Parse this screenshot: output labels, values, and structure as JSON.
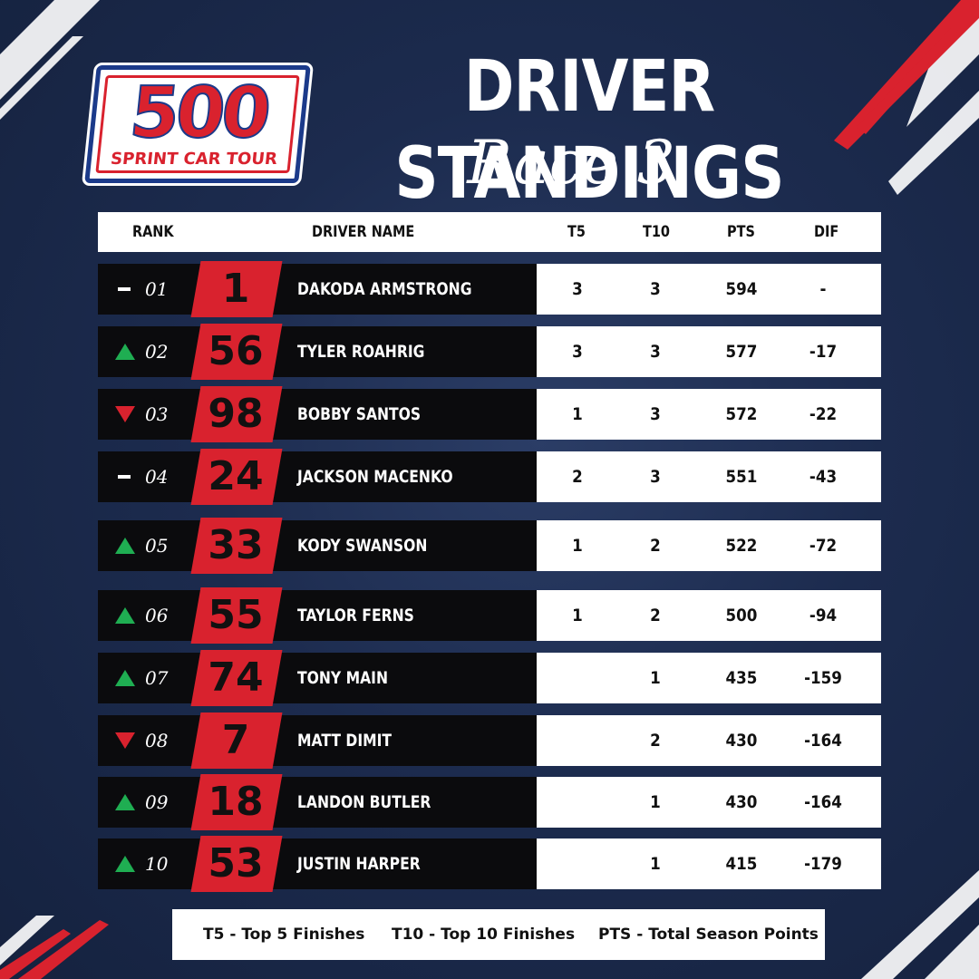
{
  "logo": {
    "number": "500",
    "tagline": "SPRINT CAR TOUR"
  },
  "title": "DRIVER STANDINGS",
  "subtitle": "Race 3",
  "columns": {
    "rank": "RANK",
    "driver": "DRIVER NAME",
    "t5": "T5",
    "t10": "T10",
    "pts": "PTS",
    "dif": "DIF"
  },
  "colors": {
    "accent": "#d9222e",
    "up": "#1fae52",
    "down": "#d9222e",
    "background": "#1c2b4e"
  },
  "standings": [
    {
      "trend": "same",
      "rank": "01",
      "car": "1",
      "driver": "DAKODA ARMSTRONG",
      "t5": "3",
      "t10": "3",
      "pts": "594",
      "dif": "-"
    },
    {
      "trend": "up",
      "rank": "02",
      "car": "56",
      "driver": "TYLER ROAHRIG",
      "t5": "3",
      "t10": "3",
      "pts": "577",
      "dif": "-17"
    },
    {
      "trend": "down",
      "rank": "03",
      "car": "98",
      "driver": "BOBBY SANTOS",
      "t5": "1",
      "t10": "3",
      "pts": "572",
      "dif": "-22"
    },
    {
      "trend": "same",
      "rank": "04",
      "car": "24",
      "driver": "JACKSON MACENKO",
      "t5": "2",
      "t10": "3",
      "pts": "551",
      "dif": "-43"
    },
    {
      "trend": "up",
      "rank": "05",
      "car": "33",
      "driver": "KODY SWANSON",
      "t5": "1",
      "t10": "2",
      "pts": "522",
      "dif": "-72"
    },
    {
      "trend": "up",
      "rank": "06",
      "car": "55",
      "driver": "TAYLOR FERNS",
      "t5": "1",
      "t10": "2",
      "pts": "500",
      "dif": "-94"
    },
    {
      "trend": "up",
      "rank": "07",
      "car": "74",
      "driver": "TONY MAIN",
      "t5": "",
      "t10": "1",
      "pts": "435",
      "dif": "-159"
    },
    {
      "trend": "down",
      "rank": "08",
      "car": "7",
      "driver": "MATT DIMIT",
      "t5": "",
      "t10": "2",
      "pts": "430",
      "dif": "-164"
    },
    {
      "trend": "up",
      "rank": "09",
      "car": "18",
      "driver": "LANDON BUTLER",
      "t5": "",
      "t10": "1",
      "pts": "430",
      "dif": "-164"
    },
    {
      "trend": "up",
      "rank": "10",
      "car": "53",
      "driver": "JUSTIN HARPER",
      "t5": "",
      "t10": "1",
      "pts": "415",
      "dif": "-179"
    }
  ],
  "legend": {
    "t5": "T5 - Top 5 Finishes",
    "t10": "T10 - Top 10 Finishes",
    "pts": "PTS - Total Season Points"
  }
}
